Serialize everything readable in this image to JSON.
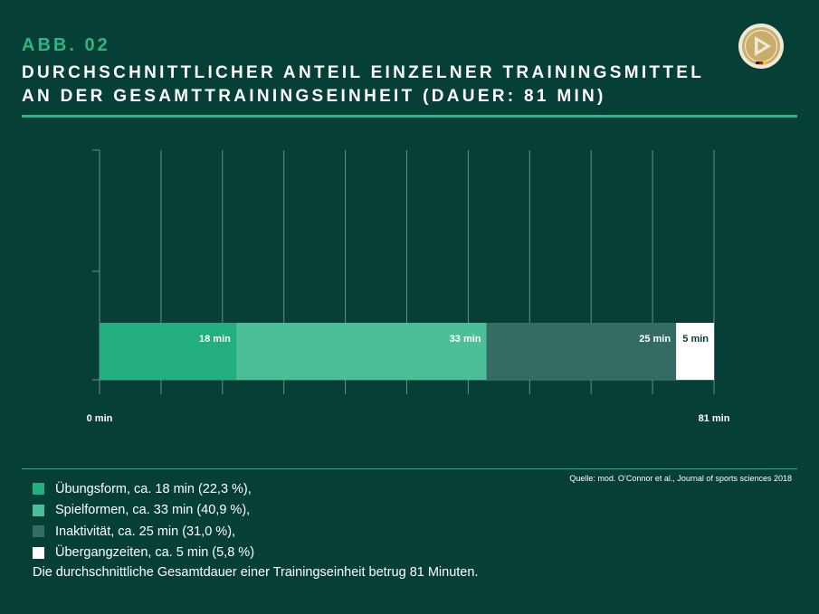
{
  "header": {
    "figure_label": "ABB. 02",
    "title_line1": "DURCHSCHNITTLICHER ANTEIL EINZELNER TRAININGSMITTEL",
    "title_line2": "AN DER GESAMTTRAININGSEINHEIT (DAUER: 81 MIN)"
  },
  "logo": {
    "icon": "dfb-logo-icon"
  },
  "source": "Quelle: mod. O’Connor et al., Journal of sports sciences 2018",
  "colors": {
    "background": "#053f35",
    "accent": "#2fb584",
    "grid": "#6a8f86"
  },
  "chart_data": {
    "type": "bar",
    "orientation": "horizontal",
    "stacked": true,
    "title": "Durchschnittlicher Anteil einzelner Trainingsmittel an der Gesamttrainingseinheit (Dauer: 81 min)",
    "xlim": [
      0,
      81
    ],
    "x_tick_labels": [
      "0 min",
      "81 min"
    ],
    "grid": true,
    "series": [
      {
        "name": "Übungsform",
        "value": 18,
        "label": "18 min",
        "color": "#22ae7e",
        "label_color": "#ffffff"
      },
      {
        "name": "Spielformen",
        "value": 33,
        "label": "33 min",
        "color": "#4cbe98",
        "label_color": "#ffffff"
      },
      {
        "name": "Inaktivität",
        "value": 25,
        "label": "25 min",
        "color": "#346c63",
        "label_color": "#ffffff"
      },
      {
        "name": "Übergangzeiten",
        "value": 5,
        "label": "5 min",
        "color": "#ffffff",
        "label_color": "#053f35"
      }
    ]
  },
  "legend": [
    {
      "text": "Übungsform, ca. 18 min (22,3 %),",
      "color": "#22ae7e"
    },
    {
      "text": "Spielformen, ca. 33 min (40,9 %),",
      "color": "#4cbe98"
    },
    {
      "text": "Inaktivität, ca. 25 min (31,0 %),",
      "color": "#346c63"
    },
    {
      "text": "Übergangzeiten, ca. 5 min (5,8 %)",
      "color": "#ffffff"
    }
  ],
  "note": "Die durchschnittliche Gesamtdauer einer Trainingseinheit betrug 81 Minuten."
}
